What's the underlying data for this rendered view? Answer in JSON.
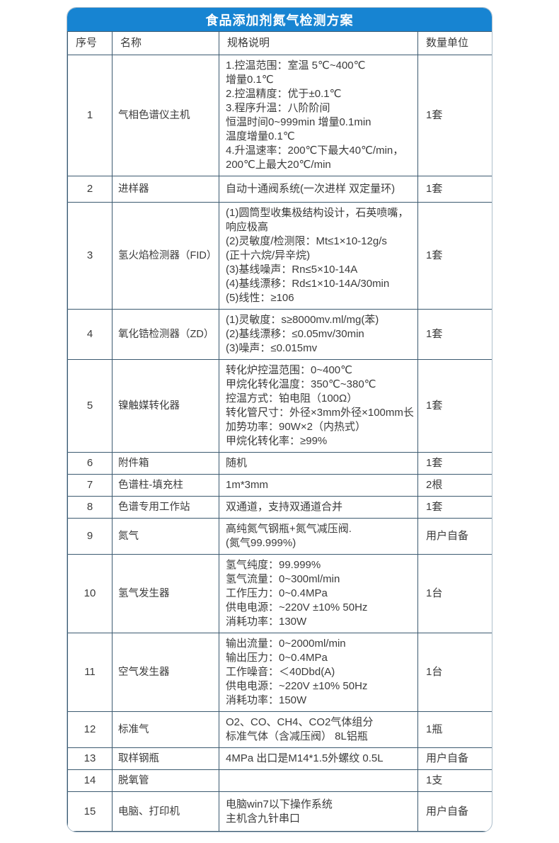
{
  "title": "食品添加剂氮气检测方案",
  "colors": {
    "accent_blue": "#1784d2",
    "cell_border": "#3c5a70",
    "outer_border": "#aebfcc",
    "text": "#3b3b3b",
    "title_text": "#ffffff"
  },
  "table": {
    "headers": [
      "序号",
      "名称",
      "规格说明",
      "数量单位"
    ],
    "rows": [
      {
        "no": "1",
        "name": "气相色谱仪主机",
        "spec": "1.控温范围：室温 5℃~400℃\n增量0.1℃\n2.控温精度：优于±0.1℃\n3.程序升温：八阶阶间\n恒温时间0~999min 增量0.1min\n温度增量0.1℃\n4.升温速率：200℃下最大40℃/min，\n200℃上最大20℃/min",
        "qty": "1套"
      },
      {
        "no": "2",
        "name": "进样器",
        "spec": "自动十通阀系统(一次进样 双定量环)",
        "qty": "1套"
      },
      {
        "no": "3",
        "name": "氢火焰检测器（FID）",
        "spec": "(1)圆筒型收集极结构设计，石英喷嘴，\n响应极高\n(2)灵敏度/检测限：Mt≤1×10-12g/s\n(正十六烷/异辛烷)\n(3)基线噪声：Rn≤5×10-14A\n(4)基线漂移：Rd≤1×10-14A/30min\n(5)线性：≥106",
        "qty": "1套"
      },
      {
        "no": "4",
        "name": "氧化锆检测器（ZD）",
        "spec": "(1)灵敏度：s≥8000mv.ml/mg(苯)\n(2)基线漂移：≤0.05mv/30min\n(3)噪声：≤0.015mv",
        "qty": "1套"
      },
      {
        "no": "5",
        "name": "镍触媒转化器",
        "spec": "转化炉控温范围：0~400℃\n甲烷化转化温度：350℃~380℃\n控温方式：铂电阻（100Ω）\n转化管尺寸：外径×3mm外径×100mm长\n加势功率：90W×2（内热式）\n甲烷化转化率：≥99%",
        "qty": "1套"
      },
      {
        "no": "6",
        "name": "附件箱",
        "spec": "随机",
        "qty": "1套"
      },
      {
        "no": "7",
        "name": "色谱柱-填充柱",
        "spec": "1m*3mm",
        "qty": "2根"
      },
      {
        "no": "8",
        "name": "色谱专用工作站",
        "spec": "双通道，支持双通道合并",
        "qty": "1套"
      },
      {
        "no": "9",
        "name": "氮气",
        "spec": "高纯氮气钢瓶+氮气减压阀.\n(氮气99.999%)",
        "qty": "用户自备"
      },
      {
        "no": "10",
        "name": "氢气发生器",
        "spec": "氢气纯度：99.999%\n氢气流量：0~300ml/min\n工作压力：0~0.4MPa\n供电电源：~220V ±10% 50Hz\n消耗功率：130W",
        "qty": "1台"
      },
      {
        "no": "11",
        "name": "空气发生器",
        "spec": "输出流量：0~2000ml/min\n输出压力：0~0.4MPa\n工作噪音：＜40Dbd(A)\n供电电源：~220V ±10% 50Hz\n消耗功率：150W",
        "qty": "1台"
      },
      {
        "no": "12",
        "name": "标准气",
        "spec": "O2、CO、CH4、CO2气体组分\n标准气体（含减压阀） 8L铝瓶",
        "qty": "1瓶"
      },
      {
        "no": "13",
        "name": "取样钢瓶",
        "spec": "4MPa 出口是M14*1.5外螺纹 0.5L",
        "qty": "用户自备"
      },
      {
        "no": "14",
        "name": "脱氧管",
        "spec": "",
        "qty": "1支"
      },
      {
        "no": "15",
        "name": "电脑、打印机",
        "spec": "电脑win7以下操作系统\n主机含九针串口",
        "qty": "用户自备"
      }
    ]
  }
}
